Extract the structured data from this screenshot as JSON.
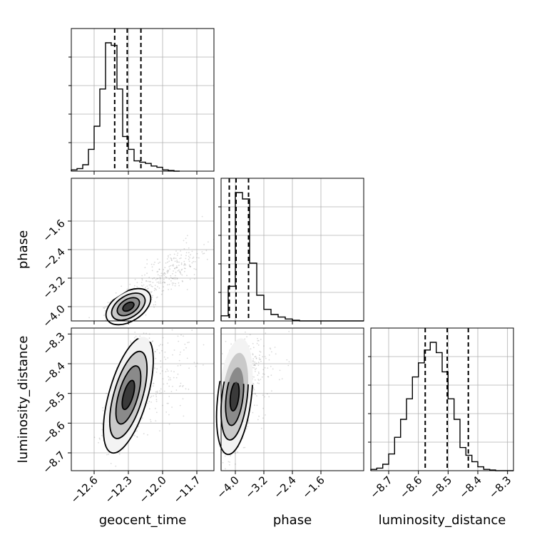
{
  "chart_data": {
    "type": "corner",
    "parameters": [
      {
        "name": "geocent_time",
        "label": "geocent_time",
        "range": [
          -12.8,
          -11.55
        ],
        "ticks": [
          -12.6,
          -12.3,
          -12.0,
          -11.7
        ],
        "tick_labels": [
          "−12.6",
          "−12.3",
          "−12.0",
          "−11.7"
        ],
        "quantiles": [
          -12.42,
          -12.31,
          -12.19
        ],
        "histogram": {
          "edges_start": -12.8,
          "bin_width": 0.05,
          "counts": [
            0.01,
            0.02,
            0.05,
            0.17,
            0.35,
            0.64,
            1.0,
            0.98,
            0.64,
            0.27,
            0.17,
            0.08,
            0.07,
            0.06,
            0.04,
            0.03,
            0.01,
            0.005,
            0.0
          ]
        }
      },
      {
        "name": "phase",
        "label": "phase",
        "range": [
          -4.4,
          -0.4
        ],
        "ticks": [
          -4.0,
          -3.2,
          -2.4,
          -1.6
        ],
        "tick_labels": [
          "−4.0",
          "−3.2",
          "−2.4",
          "−1.6"
        ],
        "quantiles": [
          -4.17,
          -3.98,
          -3.63
        ],
        "histogram": {
          "edges_start": -4.4,
          "bin_width": 0.2,
          "counts": [
            0.04,
            0.27,
            1.0,
            0.95,
            0.45,
            0.2,
            0.09,
            0.05,
            0.03,
            0.015,
            0.005,
            0.0,
            0.0,
            0.0,
            0.0,
            0.0,
            0.0,
            0.0,
            0.0,
            0.0
          ]
        }
      },
      {
        "name": "luminosity_distance",
        "label": "luminosity_distance",
        "range": [
          -8.76,
          -8.28
        ],
        "ticks": [
          -8.7,
          -8.6,
          -8.5,
          -8.4,
          -8.3
        ],
        "tick_labels": [
          "−8.7",
          "−8.6",
          "−8.5",
          "−8.4",
          "−8.3"
        ],
        "quantiles": [
          -8.577,
          -8.503,
          -8.432
        ],
        "histogram": {
          "edges_start": -8.76,
          "bin_width": 0.02,
          "counts": [
            0.01,
            0.02,
            0.05,
            0.13,
            0.26,
            0.4,
            0.56,
            0.73,
            0.84,
            0.94,
            1.0,
            0.92,
            0.77,
            0.56,
            0.4,
            0.18,
            0.12,
            0.07,
            0.03,
            0.01,
            0.005,
            0.0,
            0.0,
            0.0
          ]
        }
      }
    ],
    "joint": [
      {
        "x": "geocent_time",
        "y": "phase",
        "mean": [
          -12.3,
          -4.0
        ],
        "sigma": [
          0.085,
          0.22
        ],
        "rho": 0.45,
        "tail": {
          "mean": [
            -11.95,
            -3.05
          ],
          "sigma": [
            0.18,
            0.45
          ],
          "rho": 0.75,
          "fraction": 0.35
        },
        "y_ticks": [
          -4.0,
          -3.2,
          -2.4,
          -1.6
        ],
        "y_tick_labels": [
          "−4.0",
          "−3.2",
          "−2.4",
          "−1.6"
        ]
      },
      {
        "x": "geocent_time",
        "y": "luminosity_distance",
        "mean": [
          -12.3,
          -8.505
        ],
        "sigma": [
          0.095,
          0.085
        ],
        "rho": 0.6,
        "tail": {
          "mean": [
            -12.05,
            -8.45
          ],
          "sigma": [
            0.16,
            0.09
          ],
          "rho": 0.5,
          "fraction": 0.25
        },
        "y_ticks": [
          -8.7,
          -8.6,
          -8.5,
          -8.4,
          -8.3
        ],
        "y_tick_labels": [
          "−8.7",
          "−8.6",
          "−8.5",
          "−8.4",
          "−8.3"
        ]
      },
      {
        "x": "phase",
        "y": "luminosity_distance",
        "mean": [
          -4.02,
          -8.51
        ],
        "sigma": [
          0.22,
          0.085
        ],
        "rho": 0.35,
        "tail": {
          "mean": [
            -3.5,
            -8.45
          ],
          "sigma": [
            0.45,
            0.09
          ],
          "rho": 0.5,
          "fraction": 0.25
        }
      }
    ],
    "contour_levels": [
      0.5,
      1.0,
      1.5,
      2.0
    ]
  }
}
